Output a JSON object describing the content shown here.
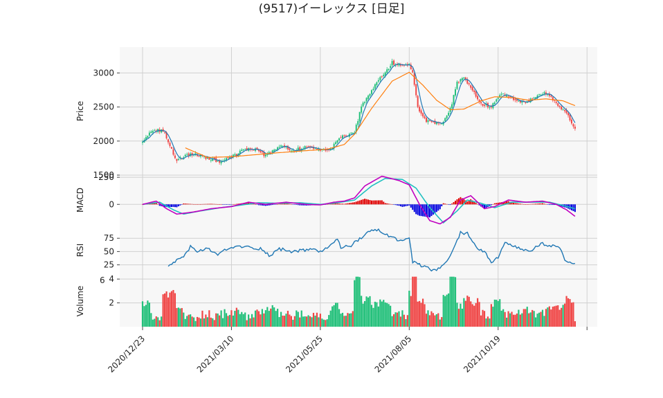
{
  "title": "(9517)イーレックス [日足]",
  "chart_data": {
    "type": "candlestick",
    "title": "(9517)イーレックス [日足]",
    "x_tick_labels": [
      "2020/12/23",
      "2021/03/10",
      "2021/05/25",
      "2021/08/05",
      "2021/10/19"
    ],
    "x_tick_index": [
      0,
      52,
      104,
      156,
      208
    ],
    "n_days": 254,
    "panels": {
      "price": {
        "ylabel": "Price",
        "yticks": [
          "1500",
          "2000",
          "2500",
          "3000"
        ],
        "ylim": [
          1500,
          3380
        ],
        "close_keypoints": [
          [
            0,
            1990
          ],
          [
            5,
            2150
          ],
          [
            12,
            2160
          ],
          [
            16,
            1950
          ],
          [
            20,
            1700
          ],
          [
            25,
            1800
          ],
          [
            32,
            1800
          ],
          [
            40,
            1730
          ],
          [
            46,
            1700
          ],
          [
            52,
            1760
          ],
          [
            58,
            1860
          ],
          [
            66,
            1880
          ],
          [
            72,
            1780
          ],
          [
            80,
            1930
          ],
          [
            88,
            1860
          ],
          [
            96,
            1910
          ],
          [
            104,
            1880
          ],
          [
            110,
            1890
          ],
          [
            116,
            2050
          ],
          [
            124,
            2120
          ],
          [
            128,
            2500
          ],
          [
            134,
            2750
          ],
          [
            140,
            2950
          ],
          [
            146,
            3150
          ],
          [
            152,
            3100
          ],
          [
            156,
            3130
          ],
          [
            158,
            3010
          ],
          [
            161,
            2500
          ],
          [
            166,
            2300
          ],
          [
            172,
            2250
          ],
          [
            176,
            2270
          ],
          [
            180,
            2460
          ],
          [
            184,
            2850
          ],
          [
            188,
            2950
          ],
          [
            192,
            2770
          ],
          [
            198,
            2550
          ],
          [
            204,
            2500
          ],
          [
            210,
            2700
          ],
          [
            218,
            2620
          ],
          [
            224,
            2550
          ],
          [
            230,
            2650
          ],
          [
            236,
            2700
          ],
          [
            242,
            2560
          ],
          [
            248,
            2400
          ],
          [
            253,
            2180
          ]
        ],
        "ma25_keypoints": [
          [
            25,
            1900
          ],
          [
            38,
            1760
          ],
          [
            52,
            1770
          ],
          [
            66,
            1800
          ],
          [
            80,
            1830
          ],
          [
            96,
            1860
          ],
          [
            108,
            1880
          ],
          [
            118,
            1950
          ],
          [
            124,
            2100
          ],
          [
            134,
            2480
          ],
          [
            146,
            2880
          ],
          [
            156,
            3010
          ],
          [
            164,
            2820
          ],
          [
            172,
            2600
          ],
          [
            180,
            2460
          ],
          [
            188,
            2470
          ],
          [
            198,
            2590
          ],
          [
            206,
            2650
          ],
          [
            216,
            2640
          ],
          [
            226,
            2600
          ],
          [
            236,
            2620
          ],
          [
            246,
            2590
          ],
          [
            253,
            2520
          ]
        ]
      },
      "macd": {
        "ylabel": "MACD",
        "yticks": [
          "0",
          "250"
        ],
        "ylim": [
          -190,
          270
        ],
        "macd_keypoints": [
          [
            0,
            0
          ],
          [
            8,
            30
          ],
          [
            14,
            -40
          ],
          [
            20,
            -90
          ],
          [
            30,
            -70
          ],
          [
            40,
            -40
          ],
          [
            52,
            -20
          ],
          [
            62,
            20
          ],
          [
            72,
            0
          ],
          [
            84,
            20
          ],
          [
            96,
            0
          ],
          [
            104,
            -5
          ],
          [
            112,
            20
          ],
          [
            118,
            30
          ],
          [
            124,
            60
          ],
          [
            130,
            170
          ],
          [
            140,
            260
          ],
          [
            150,
            220
          ],
          [
            156,
            180
          ],
          [
            162,
            0
          ],
          [
            168,
            -150
          ],
          [
            174,
            -180
          ],
          [
            180,
            -120
          ],
          [
            186,
            40
          ],
          [
            192,
            80
          ],
          [
            200,
            -40
          ],
          [
            206,
            -20
          ],
          [
            214,
            40
          ],
          [
            224,
            20
          ],
          [
            234,
            30
          ],
          [
            242,
            0
          ],
          [
            248,
            -50
          ],
          [
            253,
            -110
          ]
        ],
        "signal_keypoints": [
          [
            0,
            0
          ],
          [
            10,
            20
          ],
          [
            18,
            -50
          ],
          [
            24,
            -90
          ],
          [
            34,
            -60
          ],
          [
            46,
            -30
          ],
          [
            56,
            -10
          ],
          [
            68,
            15
          ],
          [
            80,
            10
          ],
          [
            92,
            15
          ],
          [
            104,
            0
          ],
          [
            114,
            15
          ],
          [
            124,
            40
          ],
          [
            134,
            170
          ],
          [
            142,
            240
          ],
          [
            152,
            230
          ],
          [
            160,
            150
          ],
          [
            168,
            -30
          ],
          [
            176,
            -170
          ],
          [
            184,
            -60
          ],
          [
            190,
            40
          ],
          [
            198,
            10
          ],
          [
            206,
            -30
          ],
          [
            216,
            20
          ],
          [
            228,
            20
          ],
          [
            238,
            20
          ],
          [
            246,
            -10
          ],
          [
            253,
            -40
          ]
        ]
      },
      "rsi": {
        "ylabel": "RSI",
        "yticks": [
          "25",
          "50",
          "75"
        ],
        "ylim": [
          5,
          100
        ],
        "start_index": 15,
        "keypoints": [
          [
            15,
            25
          ],
          [
            18,
            30
          ],
          [
            24,
            38
          ],
          [
            28,
            60
          ],
          [
            32,
            50
          ],
          [
            38,
            55
          ],
          [
            44,
            45
          ],
          [
            50,
            55
          ],
          [
            56,
            60
          ],
          [
            62,
            58
          ],
          [
            70,
            55
          ],
          [
            74,
            42
          ],
          [
            80,
            55
          ],
          [
            88,
            50
          ],
          [
            94,
            52
          ],
          [
            100,
            55
          ],
          [
            104,
            50
          ],
          [
            110,
            60
          ],
          [
            114,
            75
          ],
          [
            116,
            57
          ],
          [
            122,
            62
          ],
          [
            128,
            75
          ],
          [
            132,
            88
          ],
          [
            138,
            90
          ],
          [
            144,
            80
          ],
          [
            150,
            70
          ],
          [
            156,
            75
          ],
          [
            158,
            30
          ],
          [
            164,
            22
          ],
          [
            170,
            15
          ],
          [
            174,
            17
          ],
          [
            178,
            32
          ],
          [
            182,
            55
          ],
          [
            186,
            85
          ],
          [
            190,
            85
          ],
          [
            196,
            55
          ],
          [
            200,
            50
          ],
          [
            204,
            28
          ],
          [
            208,
            40
          ],
          [
            212,
            65
          ],
          [
            218,
            58
          ],
          [
            226,
            50
          ],
          [
            234,
            65
          ],
          [
            240,
            60
          ],
          [
            244,
            55
          ],
          [
            248,
            30
          ],
          [
            253,
            28
          ]
        ]
      },
      "volume": {
        "ylabel": "Volume",
        "y_exponent_label": "6",
        "yticks": [
          "2",
          "4"
        ],
        "ylim": [
          0,
          4.3
        ]
      }
    },
    "colors": {
      "up": "#22c07a",
      "down": "#f04646",
      "ma_short": "#1f77b4",
      "ma_long": "#ff7f0e",
      "macd_line": "#c000c0",
      "signal_line": "#20c0c0",
      "hist_pos": "#e00000",
      "hist_neg": "#0000e0",
      "rsi_line": "#1f77b4",
      "grid": "#d0d0d0",
      "panel_bg": "#f7f7f7"
    }
  }
}
